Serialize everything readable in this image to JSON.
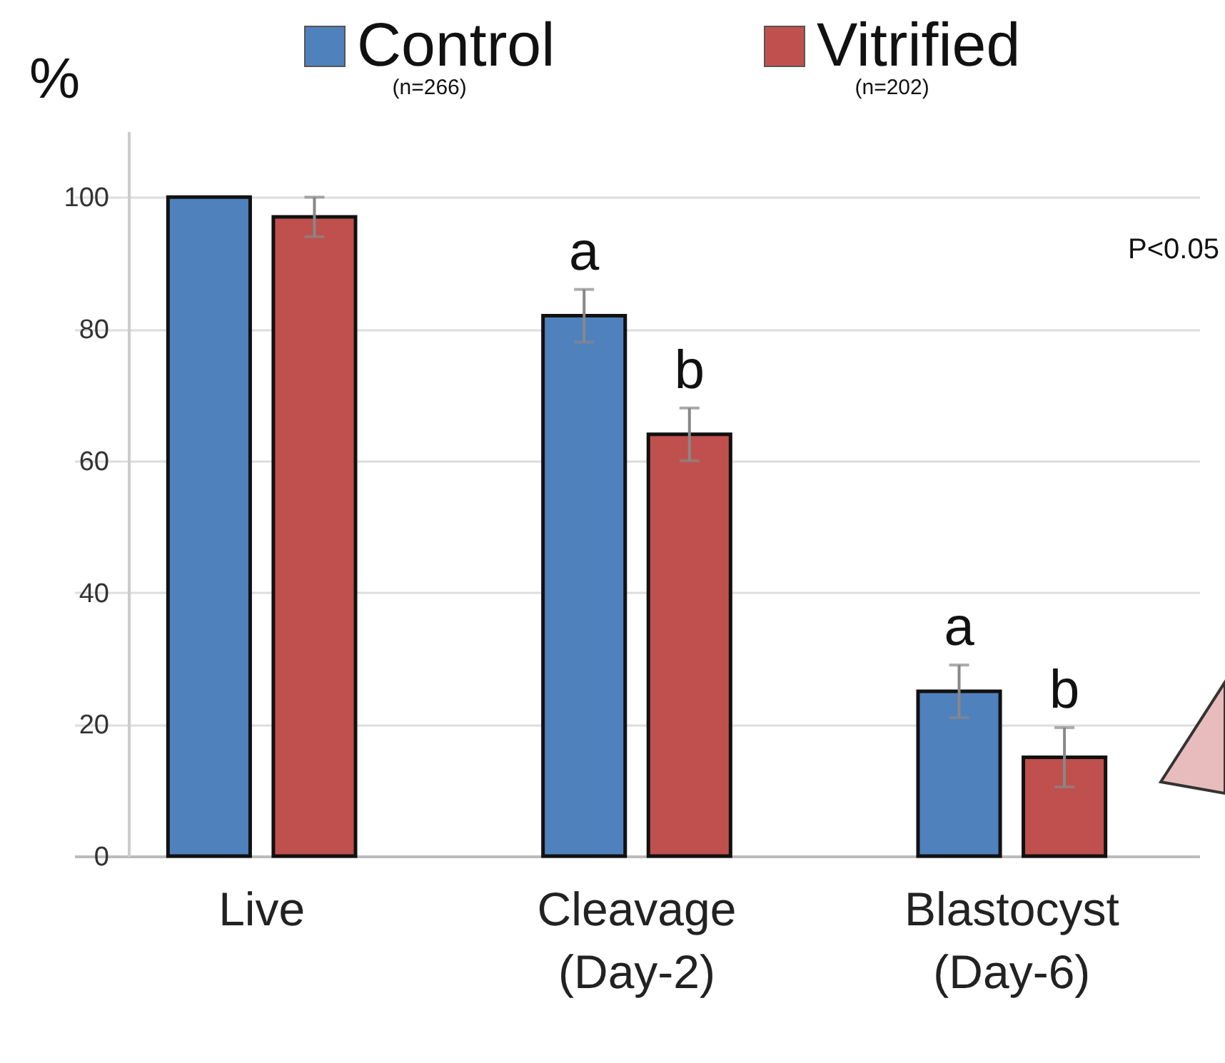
{
  "chart_data": {
    "type": "bar",
    "ylabel": "%",
    "categories": [
      "Live",
      "Cleavage\n(Day-2)",
      "Blastocyst\n(Day-6)"
    ],
    "series": [
      {
        "name": "Control",
        "color": "#4f81bd",
        "values": [
          100,
          82,
          25
        ],
        "errors": [
          null,
          4,
          4
        ],
        "value_labels": [
          null,
          "a",
          "a"
        ]
      },
      {
        "name": "Vitrified",
        "color": "#c0504d",
        "values": [
          97,
          64,
          15
        ],
        "errors": [
          3,
          4,
          4.5
        ],
        "value_labels": [
          null,
          "b",
          "b"
        ]
      }
    ],
    "ylim": [
      0,
      110
    ],
    "yticks": [
      0,
      20,
      40,
      60,
      80,
      100
    ],
    "grid": "y",
    "legend": "top",
    "annotations": [
      "(n=266)",
      "(n=202)",
      "P<0.05"
    ]
  }
}
